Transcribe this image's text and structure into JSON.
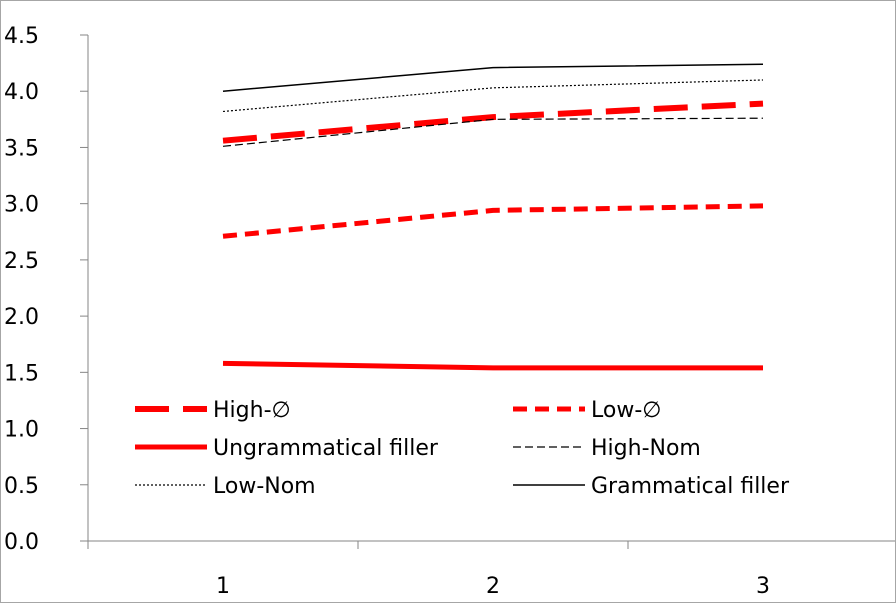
{
  "chart_data": {
    "type": "line",
    "title": "",
    "xlabel": "",
    "ylabel": "",
    "x": [
      1,
      2,
      3
    ],
    "categories": [
      "1",
      "2",
      "3"
    ],
    "ylim": [
      0,
      4.5
    ],
    "yticks": [
      "0.0",
      "0.5",
      "1.0",
      "1.5",
      "2.0",
      "2.5",
      "3.0",
      "3.5",
      "4.0",
      "4.5"
    ],
    "grid": false,
    "legend_position": "bottom-inside",
    "series": [
      {
        "name": "High-∅",
        "values": [
          3.56,
          3.77,
          3.89
        ],
        "color": "#ff0000",
        "style": "thick-long-dash"
      },
      {
        "name": "Low-∅",
        "values": [
          2.71,
          2.94,
          2.98
        ],
        "color": "#ff0000",
        "style": "thick-short-dash"
      },
      {
        "name": "Ungrammatical filler",
        "values": [
          1.58,
          1.54,
          1.54
        ],
        "color": "#ff0000",
        "style": "thick-solid"
      },
      {
        "name": "High-Nom",
        "values": [
          3.51,
          3.75,
          3.76
        ],
        "color": "#000000",
        "style": "thin-dash"
      },
      {
        "name": "Low-Nom",
        "values": [
          3.82,
          4.03,
          4.1
        ],
        "color": "#000000",
        "style": "thin-dot"
      },
      {
        "name": "Grammatical filler",
        "values": [
          4.0,
          4.21,
          4.24
        ],
        "color": "#000000",
        "style": "thin-solid"
      }
    ]
  }
}
